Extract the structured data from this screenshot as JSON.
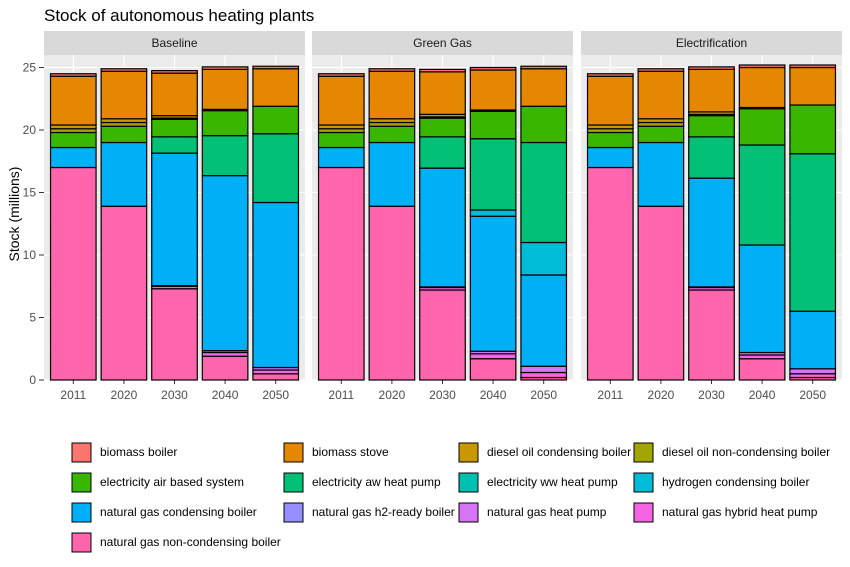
{
  "chart_data": {
    "type": "bar",
    "stacked": true,
    "faceted": true,
    "title": "Stock of autonomous heating plants",
    "ylabel": "Stock (millions)",
    "xlabel": "",
    "ylim": [
      0,
      26
    ],
    "yticks": [
      0,
      5,
      10,
      15,
      20,
      25
    ],
    "grid": true,
    "legend_position": "bottom",
    "categories": [
      "2011",
      "2020",
      "2030",
      "2040",
      "2050"
    ],
    "series": [
      {
        "name": "biomass boiler",
        "color": "#F8766D"
      },
      {
        "name": "biomass stove",
        "color": "#E58700"
      },
      {
        "name": "diesel oil condensing boiler",
        "color": "#C99800"
      },
      {
        "name": "diesel oil non-condensing boiler",
        "color": "#A3A500"
      },
      {
        "name": "electricity air based system",
        "color": "#39B600"
      },
      {
        "name": "electricity aw heat pump",
        "color": "#00C176"
      },
      {
        "name": "electricity ww heat pump",
        "color": "#00C0AF"
      },
      {
        "name": "hydrogen condensing boiler",
        "color": "#00BCD8"
      },
      {
        "name": "natural gas condensing boiler",
        "color": "#00B0F6"
      },
      {
        "name": "natural gas h2-ready boiler",
        "color": "#9590FF"
      },
      {
        "name": "natural gas heat pump",
        "color": "#D574F5"
      },
      {
        "name": "natural gas hybrid heat pump",
        "color": "#F564E3"
      },
      {
        "name": "natural gas non-condensing boiler",
        "color": "#FF65AC"
      }
    ],
    "stack_order_top_to_bottom": [
      "biomass boiler",
      "biomass stove",
      "diesel oil condensing boiler",
      "diesel oil non-condensing boiler",
      "electricity air based system",
      "electricity aw heat pump",
      "electricity ww heat pump",
      "hydrogen condensing boiler",
      "natural gas condensing boiler",
      "natural gas h2-ready boiler",
      "natural gas heat pump",
      "natural gas hybrid heat pump",
      "natural gas non-condensing boiler"
    ],
    "panels": [
      {
        "name": "Baseline",
        "values": {
          "biomass boiler": [
            0.2,
            0.2,
            0.2,
            0.2,
            0.2
          ],
          "biomass stove": [
            3.9,
            3.8,
            3.4,
            3.2,
            3.0
          ],
          "diesel oil condensing boiler": [
            0.3,
            0.3,
            0.2,
            0.1,
            0.0
          ],
          "diesel oil non-condensing boiler": [
            0.3,
            0.3,
            0.1,
            0.0,
            0.0
          ],
          "electricity air based system": [
            1.2,
            1.3,
            1.4,
            2.0,
            2.2
          ],
          "electricity aw heat pump": [
            0.0,
            0.0,
            1.3,
            3.2,
            5.5
          ],
          "electricity ww heat pump": [
            0.0,
            0.0,
            0.0,
            0.0,
            0.0
          ],
          "hydrogen condensing boiler": [
            0.0,
            0.0,
            0.0,
            0.0,
            0.0
          ],
          "natural gas condensing boiler": [
            1.6,
            5.1,
            10.6,
            14.0,
            13.2
          ],
          "natural gas h2-ready boiler": [
            0.0,
            0.0,
            0.0,
            0.0,
            0.0
          ],
          "natural gas heat pump": [
            0.0,
            0.0,
            0.05,
            0.15,
            0.2
          ],
          "natural gas hybrid heat pump": [
            0.0,
            0.0,
            0.2,
            0.3,
            0.3
          ],
          "natural gas non-condensing boiler": [
            17.0,
            13.9,
            7.3,
            1.9,
            0.5
          ]
        }
      },
      {
        "name": "Green Gas",
        "values": {
          "biomass boiler": [
            0.2,
            0.2,
            0.2,
            0.2,
            0.2
          ],
          "biomass stove": [
            3.9,
            3.8,
            3.4,
            3.2,
            3.0
          ],
          "diesel oil condensing boiler": [
            0.3,
            0.3,
            0.2,
            0.1,
            0.0
          ],
          "diesel oil non-condensing boiler": [
            0.3,
            0.3,
            0.1,
            0.0,
            0.0
          ],
          "electricity air based system": [
            1.2,
            1.3,
            1.5,
            2.2,
            2.9
          ],
          "electricity aw heat pump": [
            0.0,
            0.0,
            2.5,
            5.7,
            8.0
          ],
          "electricity ww heat pump": [
            0.0,
            0.0,
            0.0,
            0.0,
            0.0
          ],
          "hydrogen condensing boiler": [
            0.0,
            0.0,
            0.0,
            0.5,
            2.6
          ],
          "natural gas condensing boiler": [
            1.6,
            5.1,
            9.5,
            10.8,
            7.3
          ],
          "natural gas h2-ready boiler": [
            0.0,
            0.0,
            0.0,
            0.0,
            0.0
          ],
          "natural gas heat pump": [
            0.0,
            0.0,
            0.05,
            0.2,
            0.5
          ],
          "natural gas hybrid heat pump": [
            0.0,
            0.0,
            0.2,
            0.4,
            0.4
          ],
          "natural gas non-condensing boiler": [
            17.0,
            13.9,
            7.2,
            1.7,
            0.2
          ]
        }
      },
      {
        "name": "Electrification",
        "values": {
          "biomass boiler": [
            0.2,
            0.2,
            0.2,
            0.2,
            0.2
          ],
          "biomass stove": [
            3.9,
            3.8,
            3.4,
            3.2,
            3.0
          ],
          "diesel oil condensing boiler": [
            0.3,
            0.3,
            0.2,
            0.1,
            0.0
          ],
          "diesel oil non-condensing boiler": [
            0.3,
            0.3,
            0.1,
            0.0,
            0.0
          ],
          "electricity air based system": [
            1.2,
            1.3,
            1.7,
            2.9,
            3.9
          ],
          "electricity aw heat pump": [
            0.0,
            0.0,
            3.3,
            8.0,
            12.6
          ],
          "electricity ww heat pump": [
            0.0,
            0.0,
            0.0,
            0.0,
            0.0
          ],
          "hydrogen condensing boiler": [
            0.0,
            0.0,
            0.0,
            0.0,
            0.0
          ],
          "natural gas condensing boiler": [
            1.6,
            5.1,
            8.7,
            8.6,
            4.6
          ],
          "natural gas h2-ready boiler": [
            0.0,
            0.0,
            0.0,
            0.0,
            0.0
          ],
          "natural gas heat pump": [
            0.0,
            0.0,
            0.05,
            0.2,
            0.4
          ],
          "natural gas hybrid heat pump": [
            0.0,
            0.0,
            0.2,
            0.3,
            0.3
          ],
          "natural gas non-condensing boiler": [
            17.0,
            13.9,
            7.2,
            1.7,
            0.2
          ]
        }
      }
    ]
  }
}
